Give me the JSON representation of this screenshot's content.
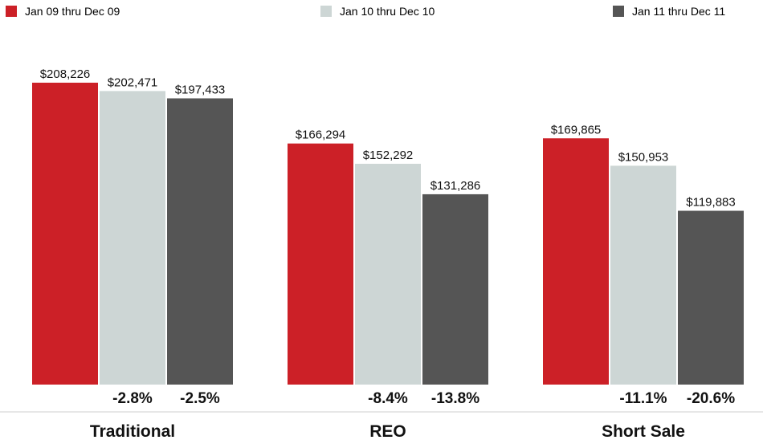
{
  "chart_data": {
    "type": "bar",
    "categories": [
      "Traditional",
      "REO",
      "Short Sale"
    ],
    "series": [
      {
        "name": "Jan 09 thru Dec 09",
        "color": "#cc2027",
        "values": [
          208226,
          166294,
          169865
        ]
      },
      {
        "name": "Jan 10 thru Dec 10",
        "color": "#cdd6d5",
        "values": [
          202471,
          152292,
          150953
        ]
      },
      {
        "name": "Jan 11 thru Dec 11",
        "color": "#555555",
        "values": [
          197433,
          131286,
          119883
        ]
      }
    ],
    "value_labels": [
      [
        "$208,226",
        "$166,294",
        "$169,865"
      ],
      [
        "$202,471",
        "$152,292",
        "$150,953"
      ],
      [
        "$197,433",
        "$131,286",
        "$119,883"
      ]
    ],
    "change_labels": [
      [
        "-2.8%",
        "-2.5%"
      ],
      [
        "-8.4%",
        "-13.8%"
      ],
      [
        "-11.1%",
        "-20.6%"
      ]
    ],
    "ylim": [
      0,
      215000
    ],
    "grid": false,
    "legend_position": "top"
  }
}
